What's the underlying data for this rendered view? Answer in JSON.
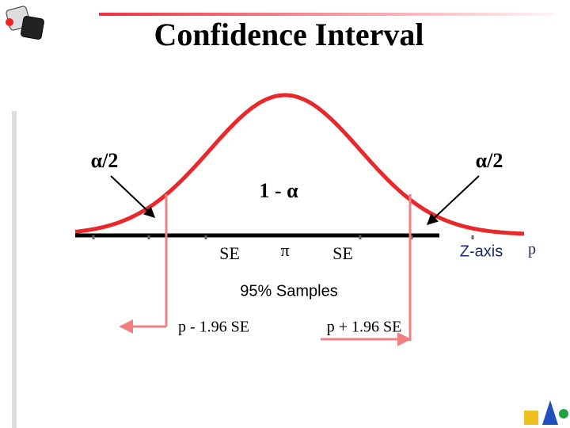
{
  "title": "Confidence Interval",
  "labels": {
    "alpha_left": "α/2",
    "alpha_right": "α/2",
    "confidence": "1 - α",
    "se_left": "SE",
    "pi": "π",
    "se_right": "SE",
    "z_axis": "Z-axis",
    "p": "p",
    "samples": "95% Samples",
    "lower": "p - 1.96 SE",
    "upper": "p + 1.96 SE"
  }
}
